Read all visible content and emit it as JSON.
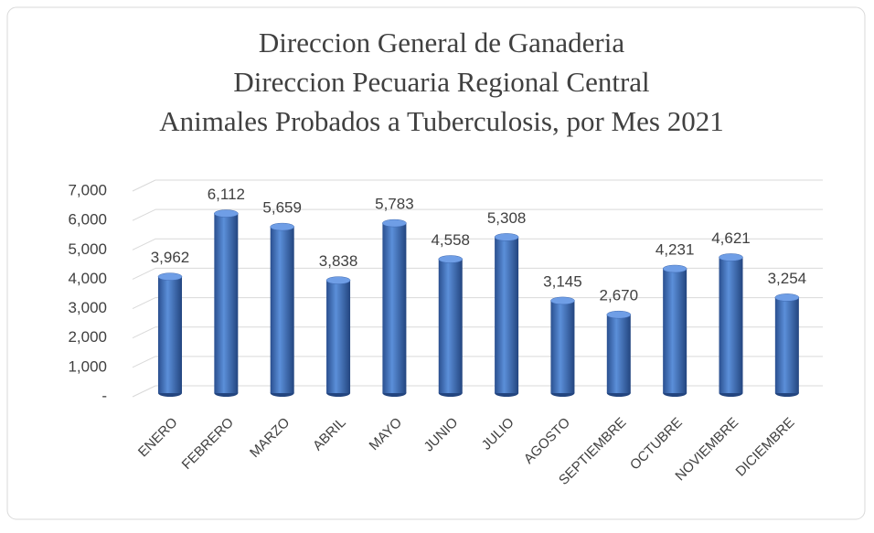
{
  "chart_data": {
    "type": "bar",
    "title": [
      "Direccion General de Ganaderia",
      "Direccion Pecuaria Regional Central",
      "Animales Probados a Tuberculosis, por Mes 2021"
    ],
    "categories": [
      "ENERO",
      "FEBRERO",
      "MARZO",
      "ABRIL",
      "MAYO",
      "JUNIO",
      "JULIO",
      "AGOSTO",
      "SEPTIEMBRE",
      "OCTUBRE",
      "NOVIEMBRE",
      "DICIEMBRE"
    ],
    "values": [
      3962,
      6112,
      5659,
      3838,
      5783,
      4558,
      5308,
      3145,
      2670,
      4231,
      4621,
      3254
    ],
    "value_labels": [
      "3,962",
      "6,112",
      "5,659",
      "3,838",
      "5,783",
      "4,558",
      "5,308",
      "3,145",
      "2,670",
      "4,231",
      "4,621",
      "3,254"
    ],
    "color": "#4472c4",
    "ylim": [
      0,
      7000
    ],
    "yticks": [
      {
        "value": 0,
        "label": "-"
      },
      {
        "value": 1000,
        "label": "1,000"
      },
      {
        "value": 2000,
        "label": "2,000"
      },
      {
        "value": 3000,
        "label": "3,000"
      },
      {
        "value": 4000,
        "label": "4,000"
      },
      {
        "value": 5000,
        "label": "5,000"
      },
      {
        "value": 6000,
        "label": "6,000"
      },
      {
        "value": 7000,
        "label": "7,000"
      }
    ],
    "grid": true
  }
}
